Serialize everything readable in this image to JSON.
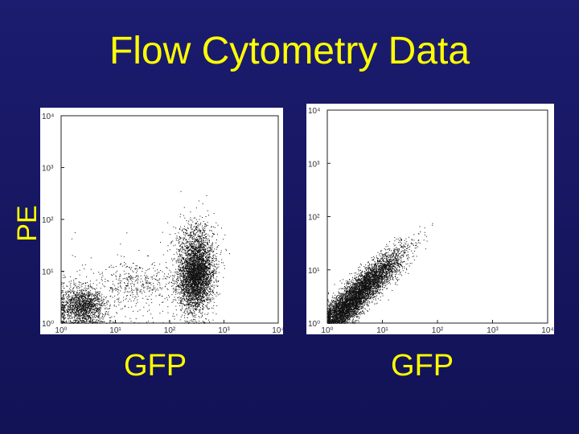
{
  "slide": {
    "title": "Flow Cytometry Data",
    "background_color": "#161660",
    "text_color": "#ffff00"
  },
  "chart_data": [
    {
      "type": "scatter",
      "title": "",
      "xlabel": "GFP",
      "ylabel": "PE",
      "x_scale": "log",
      "y_scale": "log",
      "xlim": [
        1,
        10000
      ],
      "ylim": [
        1,
        10000
      ],
      "x_ticks": [
        "10⁰",
        "10¹",
        "10²",
        "10³",
        "10⁴"
      ],
      "y_ticks": [
        "10⁰",
        "10¹",
        "10²",
        "10³",
        "10⁴"
      ],
      "grid": false,
      "clusters": [
        {
          "x_center": 2.5,
          "y_center": 2.2,
          "count": 1500,
          "x_spread": 0.22,
          "y_spread": 0.18,
          "correlation": 0.0
        },
        {
          "x_center": 25,
          "y_center": 6,
          "count": 350,
          "x_spread": 0.32,
          "y_spread": 0.22,
          "correlation": 0.0
        },
        {
          "x_center": 300,
          "y_center": 8,
          "count": 3800,
          "x_spread": 0.16,
          "y_spread": 0.32,
          "correlation": 0.1
        },
        {
          "x_center": 300,
          "y_center": 40,
          "count": 500,
          "x_spread": 0.2,
          "y_spread": 0.25,
          "correlation": 0.0
        },
        {
          "x_center": 5,
          "y_center": 3,
          "count": 200,
          "x_spread": 0.6,
          "y_spread": 0.4,
          "correlation": 0.0
        }
      ]
    },
    {
      "type": "scatter",
      "title": "",
      "xlabel": "GFP",
      "ylabel": "",
      "x_scale": "log",
      "y_scale": "log",
      "xlim": [
        1,
        10000
      ],
      "ylim": [
        1,
        10000
      ],
      "x_ticks": [
        "10⁰",
        "10¹",
        "10²",
        "10³",
        "10⁴"
      ],
      "y_ticks": [
        "10⁰",
        "10¹",
        "10²",
        "10³",
        "10⁴"
      ],
      "grid": false,
      "clusters": [
        {
          "x_center": 4,
          "y_center": 4,
          "count": 5200,
          "x_spread": 0.38,
          "y_spread": 0.38,
          "correlation": 0.9
        },
        {
          "x_center": 1.8,
          "y_center": 1.6,
          "count": 900,
          "x_spread": 0.15,
          "y_spread": 0.12,
          "correlation": 0.3
        }
      ]
    }
  ]
}
